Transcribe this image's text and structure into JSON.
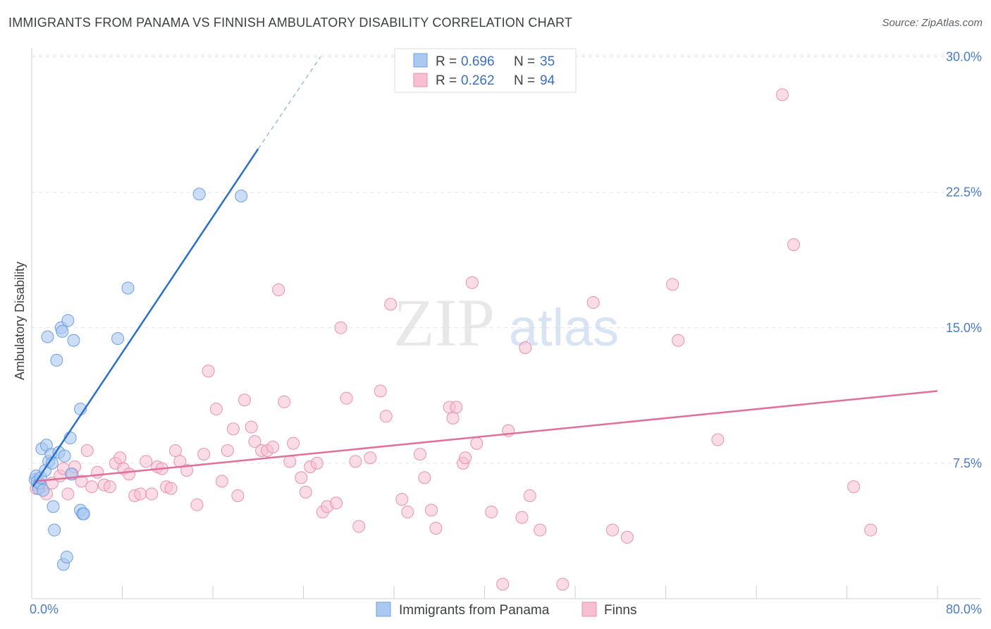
{
  "title": "IMMIGRANTS FROM PANAMA VS FINNISH AMBULATORY DISABILITY CORRELATION CHART",
  "source": "Source: ZipAtlas.com",
  "watermark": {
    "zip": "ZIP",
    "atlas": "atlas"
  },
  "legend_top": [
    {
      "r_label": "R =",
      "r_value": "0.696",
      "n_label": "N =",
      "n_value": "35"
    },
    {
      "r_label": "R =",
      "r_value": "0.262",
      "n_label": "N =",
      "n_value": "94"
    }
  ],
  "colors": {
    "blue_fill": "#aac8f0",
    "blue_stroke": "#6e9fe0",
    "blue_line": "#2c6fcc",
    "pink_fill": "#f6bfd2",
    "pink_stroke": "#ea91b2",
    "pink_line": "#e0709a",
    "tick_text": "#4a7cc9",
    "grid": "#e3e3e3"
  },
  "chart_data": {
    "type": "scatter",
    "title": "IMMIGRANTS FROM PANAMA VS FINNISH AMBULATORY DISABILITY CORRELATION CHART",
    "xlabel": "",
    "ylabel": "Ambulatory Disability",
    "xlim": [
      0,
      80
    ],
    "ylim": [
      0,
      31
    ],
    "x_tick_labels": [
      "0.0%",
      "80.0%"
    ],
    "y_ticks": [
      {
        "value": 7.5,
        "label": "7.5%"
      },
      {
        "value": 15.0,
        "label": "15.0%"
      },
      {
        "value": 22.5,
        "label": "22.5%"
      },
      {
        "value": 30.0,
        "label": "30.0%"
      }
    ],
    "grid": true,
    "series": [
      {
        "name": "Immigrants from Panama",
        "R": 0.696,
        "N": 35,
        "trend": {
          "solid": [
            [
              0.1,
              6.2
            ],
            [
              20.0,
              24.9
            ]
          ],
          "dashed": [
            [
              20.0,
              24.9
            ],
            [
              25.5,
              30.0
            ]
          ]
        },
        "points": [
          [
            0.3,
            6.6
          ],
          [
            0.4,
            6.8
          ],
          [
            0.5,
            6.5
          ],
          [
            0.6,
            6.1
          ],
          [
            0.7,
            6.4
          ],
          [
            0.8,
            6.7
          ],
          [
            0.9,
            8.3
          ],
          [
            1.0,
            6.0
          ],
          [
            1.2,
            7.1
          ],
          [
            1.3,
            8.5
          ],
          [
            1.4,
            14.5
          ],
          [
            1.5,
            7.6
          ],
          [
            1.7,
            8.0
          ],
          [
            1.8,
            7.5
          ],
          [
            1.9,
            5.1
          ],
          [
            2.0,
            3.8
          ],
          [
            2.2,
            13.2
          ],
          [
            2.4,
            8.1
          ],
          [
            2.6,
            15.0
          ],
          [
            2.7,
            14.8
          ],
          [
            2.8,
            1.9
          ],
          [
            2.9,
            7.9
          ],
          [
            3.1,
            2.3
          ],
          [
            3.2,
            15.4
          ],
          [
            3.4,
            8.9
          ],
          [
            3.5,
            6.9
          ],
          [
            3.7,
            14.3
          ],
          [
            4.3,
            10.5
          ],
          [
            4.3,
            4.9
          ],
          [
            4.5,
            4.7
          ],
          [
            4.6,
            4.7
          ],
          [
            7.6,
            14.4
          ],
          [
            8.5,
            17.2
          ],
          [
            14.8,
            22.4
          ],
          [
            18.5,
            22.3
          ]
        ]
      },
      {
        "name": "Finns",
        "R": 0.262,
        "N": 94,
        "trend": {
          "solid": [
            [
              0.3,
              6.5
            ],
            [
              80.0,
              11.5
            ]
          ]
        },
        "points": [
          [
            0.4,
            6.1
          ],
          [
            0.6,
            6.3
          ],
          [
            0.9,
            6.2
          ],
          [
            1.3,
            5.8
          ],
          [
            1.8,
            6.4
          ],
          [
            2.5,
            6.8
          ],
          [
            2.8,
            7.2
          ],
          [
            3.2,
            5.8
          ],
          [
            3.6,
            6.9
          ],
          [
            3.8,
            7.3
          ],
          [
            4.4,
            6.5
          ],
          [
            4.9,
            8.2
          ],
          [
            5.3,
            6.2
          ],
          [
            5.8,
            7.0
          ],
          [
            6.4,
            6.3
          ],
          [
            6.9,
            6.2
          ],
          [
            7.4,
            7.5
          ],
          [
            7.8,
            7.8
          ],
          [
            8.1,
            7.2
          ],
          [
            8.6,
            6.9
          ],
          [
            9.1,
            5.7
          ],
          [
            9.6,
            5.8
          ],
          [
            10.1,
            7.6
          ],
          [
            10.6,
            5.8
          ],
          [
            11.1,
            7.3
          ],
          [
            11.5,
            7.2
          ],
          [
            11.9,
            6.2
          ],
          [
            12.3,
            6.1
          ],
          [
            12.7,
            8.2
          ],
          [
            13.1,
            7.6
          ],
          [
            13.7,
            7.1
          ],
          [
            14.6,
            5.2
          ],
          [
            15.2,
            8.0
          ],
          [
            15.6,
            12.6
          ],
          [
            16.3,
            10.5
          ],
          [
            16.8,
            6.5
          ],
          [
            17.3,
            8.2
          ],
          [
            17.8,
            9.4
          ],
          [
            18.2,
            5.7
          ],
          [
            18.8,
            11.0
          ],
          [
            19.4,
            9.5
          ],
          [
            19.7,
            8.7
          ],
          [
            20.3,
            8.2
          ],
          [
            20.8,
            8.2
          ],
          [
            21.3,
            8.4
          ],
          [
            21.8,
            17.1
          ],
          [
            22.3,
            10.9
          ],
          [
            22.8,
            7.6
          ],
          [
            23.1,
            8.6
          ],
          [
            23.8,
            6.7
          ],
          [
            24.2,
            5.9
          ],
          [
            24.6,
            7.3
          ],
          [
            25.2,
            7.5
          ],
          [
            25.7,
            4.8
          ],
          [
            26.1,
            5.1
          ],
          [
            26.9,
            5.3
          ],
          [
            27.3,
            15.0
          ],
          [
            27.8,
            11.1
          ],
          [
            28.6,
            7.6
          ],
          [
            28.9,
            4.0
          ],
          [
            29.9,
            7.8
          ],
          [
            30.8,
            11.5
          ],
          [
            31.3,
            10.1
          ],
          [
            31.7,
            16.3
          ],
          [
            32.7,
            5.5
          ],
          [
            33.2,
            4.8
          ],
          [
            34.3,
            8.0
          ],
          [
            34.7,
            6.7
          ],
          [
            35.3,
            4.9
          ],
          [
            35.7,
            3.9
          ],
          [
            36.9,
            10.6
          ],
          [
            37.2,
            10.0
          ],
          [
            37.5,
            10.6
          ],
          [
            38.1,
            7.5
          ],
          [
            38.3,
            7.8
          ],
          [
            38.9,
            17.5
          ],
          [
            39.3,
            8.6
          ],
          [
            40.6,
            4.8
          ],
          [
            41.6,
            0.8
          ],
          [
            42.1,
            9.3
          ],
          [
            43.3,
            4.5
          ],
          [
            43.6,
            13.9
          ],
          [
            44.0,
            5.7
          ],
          [
            44.9,
            3.8
          ],
          [
            46.9,
            0.8
          ],
          [
            49.6,
            16.4
          ],
          [
            51.3,
            3.8
          ],
          [
            52.6,
            3.4
          ],
          [
            56.6,
            17.4
          ],
          [
            57.1,
            14.3
          ],
          [
            60.6,
            8.8
          ],
          [
            66.3,
            27.9
          ],
          [
            67.3,
            19.6
          ],
          [
            72.6,
            6.2
          ],
          [
            74.1,
            3.8
          ]
        ]
      }
    ]
  },
  "bottom_legend": [
    {
      "label": "Immigrants from Panama"
    },
    {
      "label": "Finns"
    }
  ]
}
